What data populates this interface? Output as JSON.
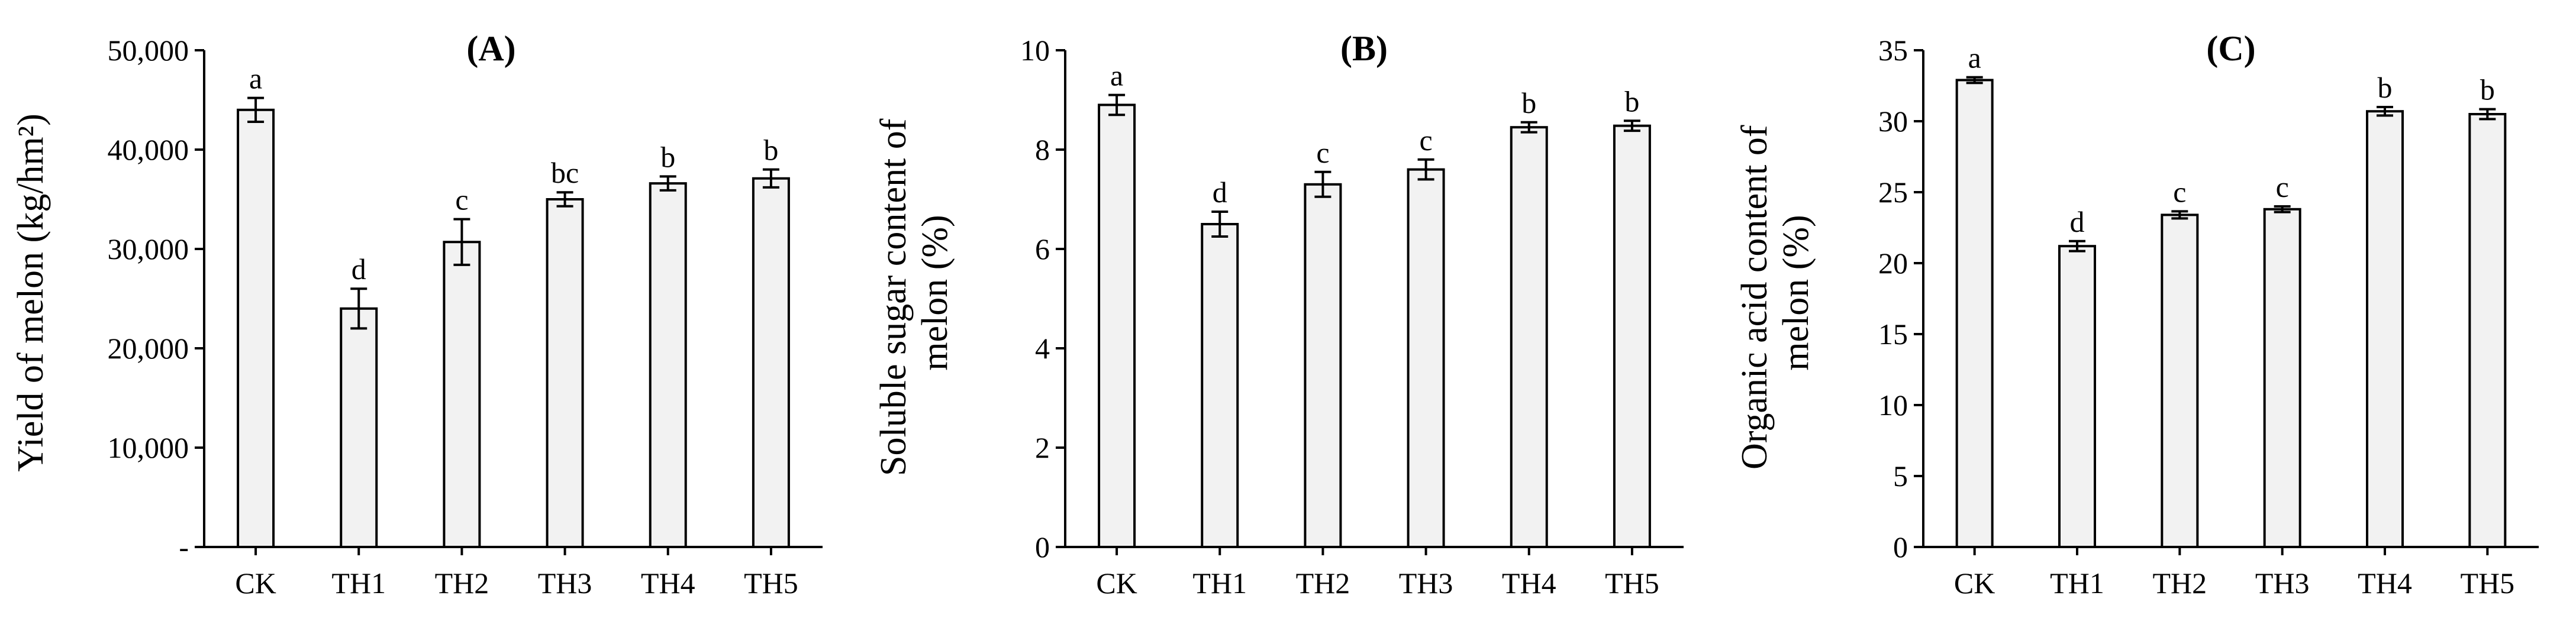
{
  "colors": {
    "bar_fill": "#f2f2f2",
    "stroke": "#000000",
    "background": "#ffffff"
  },
  "chart_data": [
    {
      "type": "bar",
      "title": "(A)",
      "xlabel": "",
      "ylabel": "Yield of melon (kg/hm²)",
      "categories": [
        "CK",
        "TH1",
        "TH2",
        "TH3",
        "TH4",
        "TH5"
      ],
      "values": [
        44000,
        24000,
        30700,
        35000,
        36600,
        37100
      ],
      "errors": [
        1200,
        2000,
        2300,
        700,
        700,
        900
      ],
      "significance": [
        "a",
        "d",
        "c",
        "bc",
        "b",
        "b"
      ],
      "ylim": [
        0,
        50000
      ],
      "yticks": [
        0,
        10000,
        20000,
        30000,
        40000,
        50000
      ],
      "ytick_labels": [
        "-",
        "10,000",
        "20,000",
        "30,000",
        "40,000",
        "50,000"
      ],
      "grid": false
    },
    {
      "type": "bar",
      "title": "(B)",
      "xlabel": "",
      "ylabel": "Soluble sugar content of melon (%)",
      "ylabel_lines": [
        "Soluble sugar content of",
        "melon (%)"
      ],
      "categories": [
        "CK",
        "TH1",
        "TH2",
        "TH3",
        "TH4",
        "TH5"
      ],
      "values": [
        8.9,
        6.5,
        7.3,
        7.6,
        8.45,
        8.48
      ],
      "errors": [
        0.2,
        0.25,
        0.25,
        0.2,
        0.1,
        0.1
      ],
      "significance": [
        "a",
        "d",
        "c",
        "c",
        "b",
        "b"
      ],
      "ylim": [
        0,
        10
      ],
      "yticks": [
        0,
        2,
        4,
        6,
        8,
        10
      ],
      "ytick_labels": [
        "0",
        "2",
        "4",
        "6",
        "8",
        "10"
      ],
      "grid": false
    },
    {
      "type": "bar",
      "title": "(C)",
      "xlabel": "",
      "ylabel": "Organic acid content of melon (%)",
      "ylabel_lines": [
        "Organic acid content of",
        "melon (%)"
      ],
      "categories": [
        "CK",
        "TH1",
        "TH2",
        "TH3",
        "TH4",
        "TH5"
      ],
      "values": [
        32.9,
        21.2,
        23.4,
        23.8,
        30.7,
        30.5
      ],
      "errors": [
        0.2,
        0.35,
        0.25,
        0.2,
        0.3,
        0.35
      ],
      "significance": [
        "a",
        "d",
        "c",
        "c",
        "b",
        "b"
      ],
      "ylim": [
        0,
        35
      ],
      "yticks": [
        0,
        5,
        10,
        15,
        20,
        25,
        30,
        35
      ],
      "ytick_labels": [
        "0",
        "5",
        "10",
        "15",
        "20",
        "25",
        "30",
        "35"
      ],
      "grid": false
    }
  ]
}
